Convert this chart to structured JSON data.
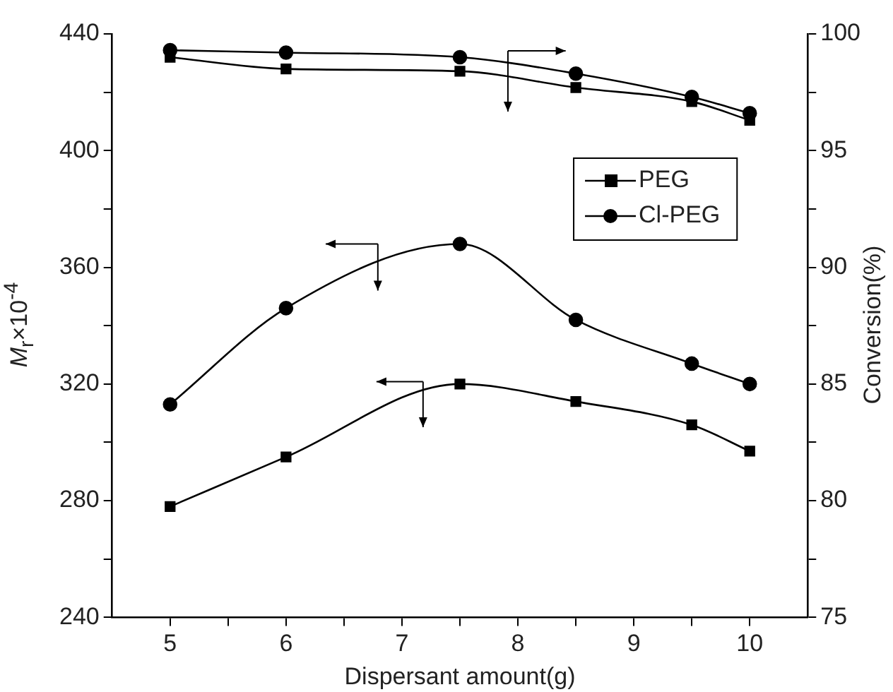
{
  "chart_data": {
    "type": "line",
    "xlabel": "Dispersant amount(g)",
    "ylabel": "M$_{r}$×10$^{-4}$",
    "y2label": "Conversion(%)",
    "x": [
      5,
      6,
      7.5,
      8.5,
      9.5,
      10
    ],
    "xlim": [
      4.5,
      10.5
    ],
    "xticks": [
      5,
      {
        "value": 5.5,
        "label": null
      },
      6,
      {
        "value": 6.5,
        "label": null
      },
      7,
      {
        "value": 7.5,
        "label": null
      },
      8,
      {
        "value": 8.5,
        "label": null
      },
      9,
      {
        "value": 9.5,
        "label": null
      },
      10
    ],
    "ylim": [
      240,
      440
    ],
    "yticks": [
      240,
      {
        "value": 260,
        "label": null
      },
      280,
      {
        "value": 300,
        "label": null
      },
      320,
      {
        "value": 340,
        "label": null
      },
      360,
      {
        "value": 380,
        "label": null
      },
      400,
      {
        "value": 420,
        "label": null
      },
      440
    ],
    "y2lim": [
      75,
      100
    ],
    "y2ticks": [
      75,
      {
        "value": 77.5,
        "label": null
      },
      80,
      {
        "value": 82.5,
        "label": null
      },
      85,
      {
        "value": 87.5,
        "label": null
      },
      90,
      {
        "value": 92.5,
        "label": null
      },
      95,
      {
        "value": 97.5,
        "label": null
      },
      100
    ],
    "series": [
      {
        "name": "PEG",
        "color": "#000000",
        "marker": "square",
        "values": [
          278,
          295,
          320,
          314,
          306,
          297
        ]
      },
      {
        "name": "Cl-PEG",
        "color": "#000000",
        "marker": "circle",
        "values": [
          313,
          346,
          368,
          342,
          327,
          320
        ]
      },
      {
        "color": "#000000",
        "marker": "square",
        "axis": "y2",
        "values": [
          99.0,
          98.5,
          98.4,
          97.7,
          97.1,
          96.3
        ]
      },
      {
        "color": "#000000",
        "marker": "circle",
        "axis": "y2",
        "values": [
          99.3,
          99.2,
          99.0,
          98.3,
          97.3,
          96.6
        ]
      }
    ],
    "grid": false,
    "legend": "top right"
  }
}
